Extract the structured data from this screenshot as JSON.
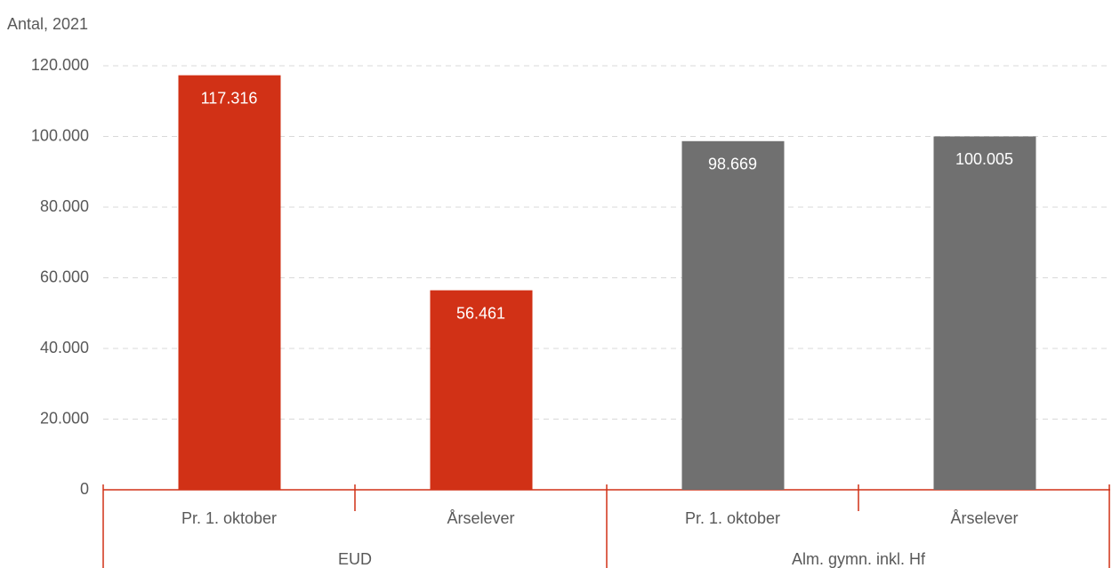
{
  "chart_data": {
    "type": "bar",
    "y_axis_label": "Antal, 2021",
    "groups": [
      {
        "name": "EUD",
        "categories": [
          "Pr. 1. oktober",
          "Årselever"
        ]
      },
      {
        "name": "Alm. gymn. inkl. Hf",
        "categories": [
          "Pr. 1. oktober",
          "Årselever"
        ]
      }
    ],
    "values": [
      117316,
      56461,
      98669,
      100005
    ],
    "value_labels": [
      "117.316",
      "56.461",
      "98.669",
      "100.005"
    ],
    "colors": [
      "#d13116",
      "#d13116",
      "#707070",
      "#707070"
    ],
    "ylim": [
      0,
      120000
    ],
    "yticks": [
      0,
      {
        "value": 20000,
        "label": "20.000"
      },
      {
        "value": 40000,
        "label": "40.000"
      },
      {
        "value": 60000,
        "label": "60.000"
      },
      {
        "value": 80000,
        "label": "80.000"
      },
      {
        "value": 100000,
        "label": "100.000"
      },
      {
        "value": 120000,
        "label": "120.000"
      }
    ],
    "grid": true
  }
}
